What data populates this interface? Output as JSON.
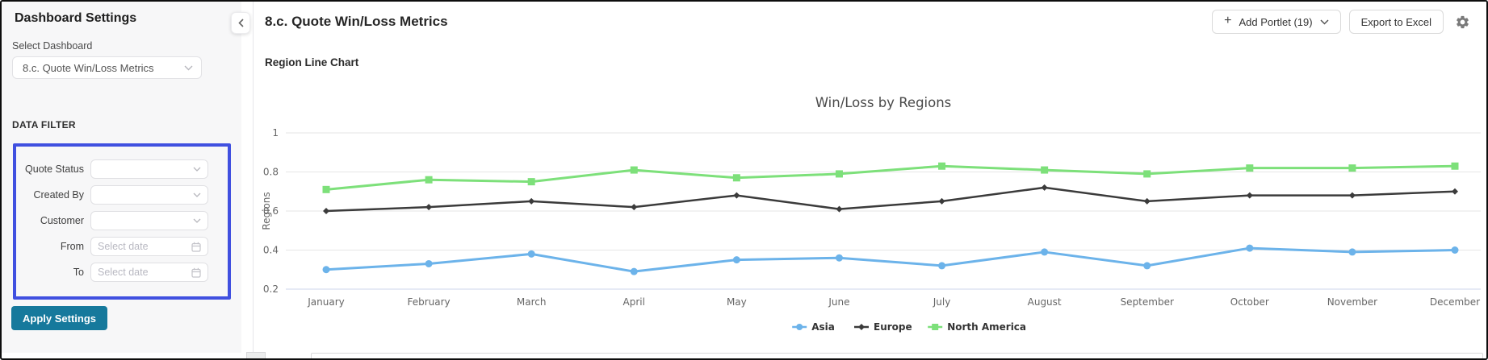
{
  "sidebar": {
    "title": "Dashboard Settings",
    "select_dashboard_label": "Select Dashboard",
    "dashboard_select_value": "8.c. Quote Win/Loss Metrics",
    "data_filter_label": "DATA FILTER",
    "highlight_color": "#4050e0",
    "filters": [
      {
        "label": "Quote Status",
        "type": "select",
        "value": ""
      },
      {
        "label": "Created By",
        "type": "select",
        "value": ""
      },
      {
        "label": "Customer",
        "type": "select",
        "value": ""
      },
      {
        "label": "From",
        "type": "date",
        "placeholder": "Select date"
      },
      {
        "label": "To",
        "type": "date",
        "placeholder": "Select date"
      }
    ],
    "apply_button_label": "Apply Settings",
    "apply_button_color": "#16799c"
  },
  "header": {
    "title": "8.c. Quote Win/Loss Metrics",
    "add_portlet_label": "Add Portlet (19)",
    "export_label": "Export to Excel"
  },
  "portlet": {
    "title": "Region Line Chart"
  },
  "chart_data": {
    "type": "line",
    "title": "Win/Loss by Regions",
    "xlabel": "",
    "ylabel": "Regions",
    "categories": [
      "January",
      "February",
      "March",
      "April",
      "May",
      "June",
      "July",
      "August",
      "September",
      "October",
      "November",
      "December"
    ],
    "series": [
      {
        "name": "Asia",
        "color": "#6cb3ea",
        "marker": "circle",
        "values": [
          0.3,
          0.33,
          0.38,
          0.29,
          0.35,
          0.36,
          0.32,
          0.39,
          0.32,
          0.41,
          0.39,
          0.4
        ]
      },
      {
        "name": "Europe",
        "color": "#3b3b3b",
        "marker": "diamond",
        "values": [
          0.6,
          0.62,
          0.65,
          0.62,
          0.68,
          0.61,
          0.65,
          0.72,
          0.65,
          0.68,
          0.68,
          0.7
        ]
      },
      {
        "name": "North America",
        "color": "#7de07a",
        "marker": "square",
        "values": [
          0.71,
          0.76,
          0.75,
          0.81,
          0.77,
          0.79,
          0.83,
          0.81,
          0.79,
          0.82,
          0.82,
          0.83
        ]
      }
    ],
    "yticks": [
      1,
      0.8,
      0.6,
      0.4,
      0.2
    ],
    "ylim": [
      0.2,
      1.05
    ],
    "grid": true,
    "axis_line_color": "#ccd6eb",
    "grid_color": "#e6e6e6",
    "legend_position": "bottom"
  }
}
